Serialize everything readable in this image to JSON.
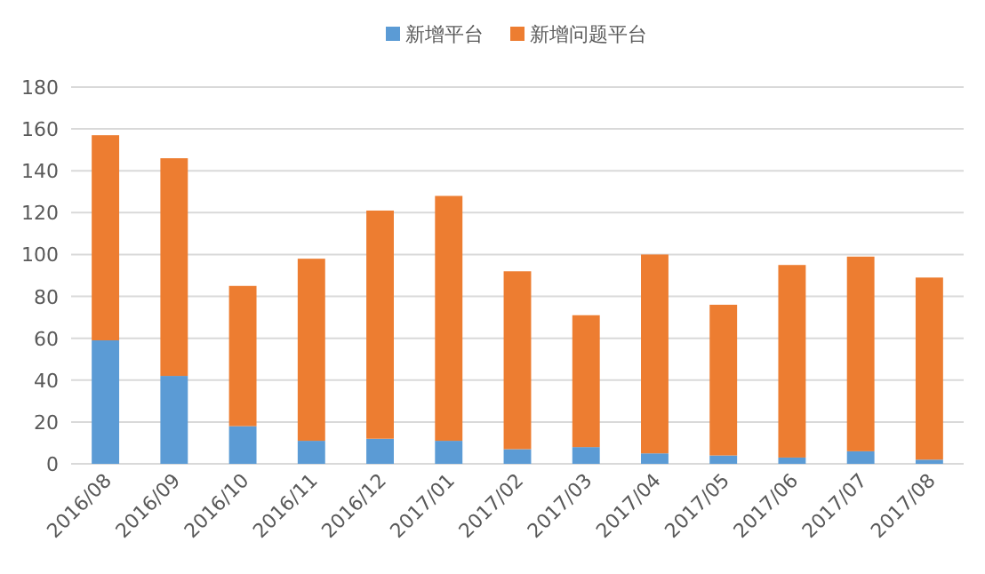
{
  "chart_data": {
    "type": "bar",
    "stacked": true,
    "categories": [
      "2016/08",
      "2016/09",
      "2016/10",
      "2016/11",
      "2016/12",
      "2017/01",
      "2017/02",
      "2017/03",
      "2017/04",
      "2017/05",
      "2017/06",
      "2017/07",
      "2017/08"
    ],
    "series": [
      {
        "name": "新增平台",
        "color": "#5b9bd5",
        "values": [
          59,
          42,
          18,
          11,
          12,
          11,
          7,
          8,
          5,
          4,
          3,
          6,
          2
        ]
      },
      {
        "name": "新增问题平台",
        "color": "#ed7d31",
        "values": [
          98,
          104,
          67,
          87,
          109,
          117,
          85,
          63,
          95,
          72,
          92,
          93,
          87
        ]
      }
    ],
    "ylim": [
      0,
      180
    ],
    "yticks": [
      0,
      20,
      40,
      60,
      80,
      100,
      120,
      140,
      160,
      180
    ],
    "grid": "y",
    "legend": "top"
  }
}
